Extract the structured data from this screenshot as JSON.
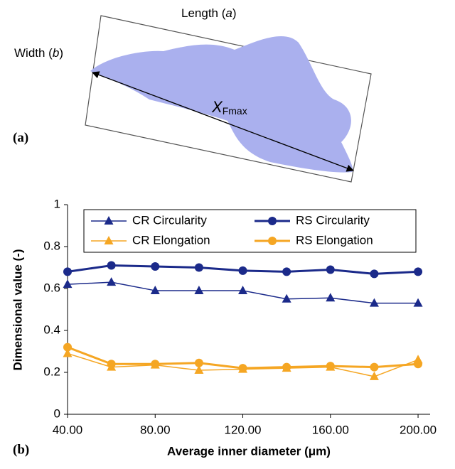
{
  "diagram": {
    "length_label": [
      "Length (",
      "a",
      ")"
    ],
    "width_label": [
      "Width (",
      "b",
      ")"
    ],
    "feret_label": [
      "X",
      "Fmax"
    ],
    "panel_label": "(a)"
  },
  "chart_data": {
    "type": "line",
    "panel_label": "(b)",
    "x_label": "Average inner diameter (μm)",
    "y_label": "Dimensional value (-)",
    "x": [
      40,
      60,
      80,
      100,
      120,
      140,
      160,
      180,
      200
    ],
    "xlim": [
      40,
      205.5
    ],
    "xticks": [
      {
        "value": 40,
        "label": "40.00"
      },
      {
        "value": 80,
        "label": "80.00"
      },
      {
        "value": 120,
        "label": "120.00"
      },
      {
        "value": 160,
        "label": "160.00"
      },
      {
        "value": 200,
        "label": "200.00"
      }
    ],
    "ylim": [
      0,
      1
    ],
    "yticks": [
      0,
      0.2,
      0.4,
      0.6,
      0.8,
      1
    ],
    "grid": false,
    "legend": "top",
    "series": [
      {
        "name": "CR Circularity",
        "color": "#1b2a8a",
        "marker": "triangle",
        "line_width": 1.5,
        "values": [
          0.62,
          0.63,
          0.59,
          0.59,
          0.59,
          0.55,
          0.555,
          0.53,
          0.53
        ]
      },
      {
        "name": "RS Circularity",
        "color": "#1b2a8a",
        "marker": "circle",
        "line_width": 3,
        "values": [
          0.68,
          0.71,
          0.705,
          0.7,
          0.685,
          0.68,
          0.69,
          0.67,
          0.68
        ]
      },
      {
        "name": "CR Elongation",
        "color": "#f5a623",
        "marker": "triangle",
        "line_width": 1.5,
        "values": [
          0.29,
          0.225,
          0.235,
          0.21,
          0.215,
          0.22,
          0.225,
          0.18,
          0.26
        ]
      },
      {
        "name": "RS Elongation",
        "color": "#f5a623",
        "marker": "circle",
        "line_width": 3,
        "values": [
          0.32,
          0.24,
          0.24,
          0.245,
          0.22,
          0.225,
          0.23,
          0.225,
          0.24
        ]
      }
    ]
  }
}
